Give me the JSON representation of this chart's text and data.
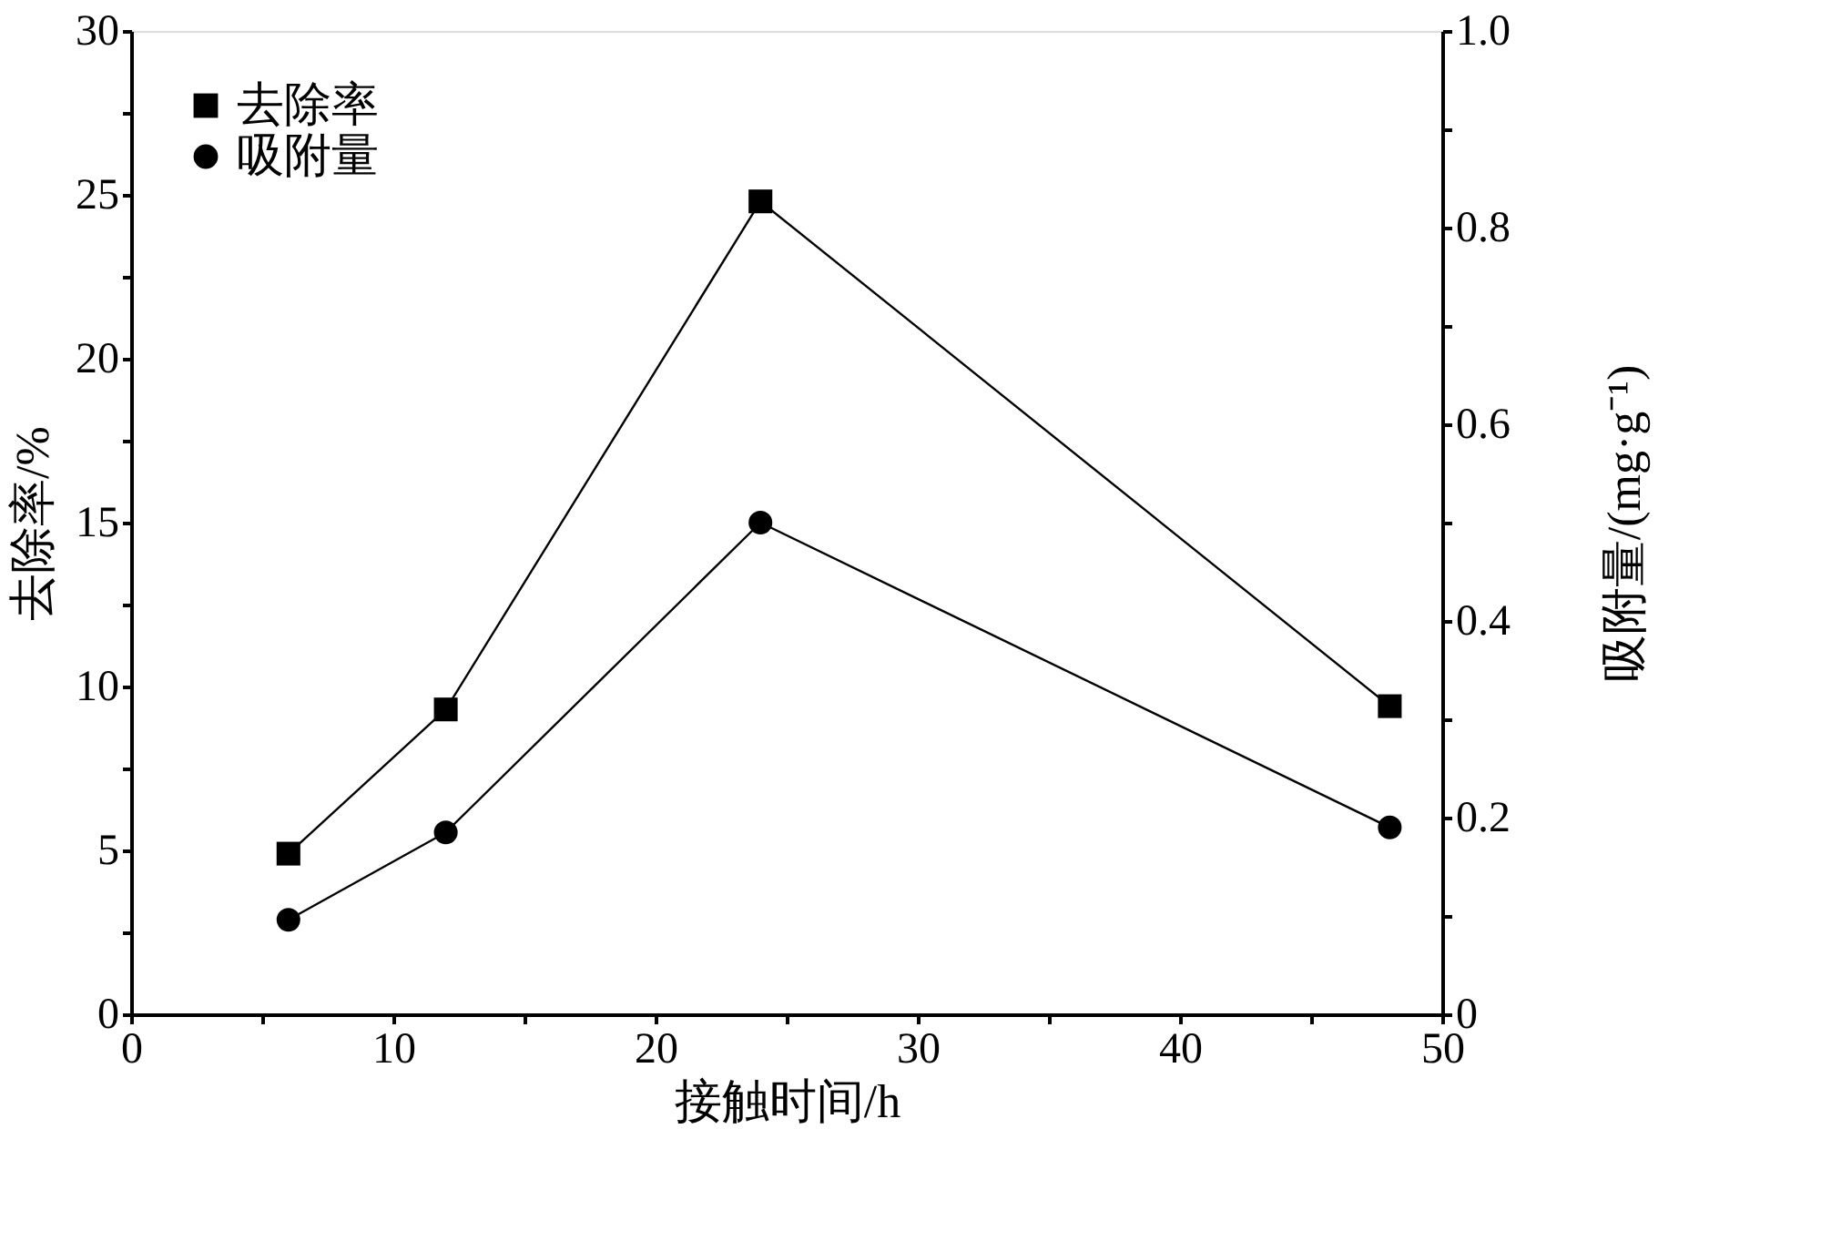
{
  "chart_data": {
    "type": "line",
    "xlabel": "接触时间/h",
    "ylabel": "去除率/%",
    "y2label": "吸附量/(mg·g⁻¹)",
    "x": [
      6,
      12,
      24,
      48
    ],
    "series": [
      {
        "name": "去除率",
        "color": "#000000",
        "marker": "square",
        "values": [
          4.9,
          9.3,
          24.8,
          9.4
        ]
      },
      {
        "name": "吸附量",
        "color": "#000000",
        "marker": "circle",
        "axis": "y2",
        "values": [
          0.096,
          0.185,
          0.5,
          0.19
        ]
      }
    ],
    "xlim": [
      0,
      50
    ],
    "xticks": [
      0,
      {
        "value": 5,
        "label": null
      },
      10,
      {
        "value": 15,
        "label": null
      },
      20,
      {
        "value": 25,
        "label": null
      },
      30,
      {
        "value": 35,
        "label": null
      },
      40,
      {
        "value": 45,
        "label": null
      },
      50
    ],
    "ylim": [
      0,
      30
    ],
    "yticks": [
      0,
      {
        "value": 2.5,
        "label": null
      },
      5,
      {
        "value": 7.5,
        "label": null
      },
      10,
      {
        "value": 12.5,
        "label": null
      },
      15,
      {
        "value": 17.5,
        "label": null
      },
      20,
      {
        "value": 22.5,
        "label": null
      },
      25,
      {
        "value": 27.5,
        "label": null
      },
      30
    ],
    "y2lim": [
      0,
      1.0
    ],
    "y2ticks": [
      0,
      {
        "value": 0.1,
        "label": null
      },
      0.2,
      {
        "value": 0.3,
        "label": null
      },
      0.4,
      {
        "value": 0.5,
        "label": null
      },
      0.6,
      {
        "value": 0.7,
        "label": null
      },
      0.8,
      {
        "value": 0.9,
        "label": null
      },
      {
        "value": 1,
        "label": "1.0"
      }
    ],
    "legend": "top left",
    "grid": false,
    "line_style": "solid"
  }
}
